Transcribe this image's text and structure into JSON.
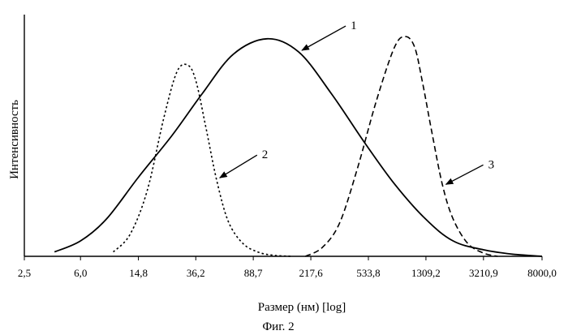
{
  "chart_data": {
    "type": "line",
    "title": "",
    "caption": "Фиг. 2",
    "xlabel": "Размер (нм)  [log]",
    "ylabel": "Интенсивность",
    "xscale": "log",
    "xlim": [
      2.5,
      8000.0
    ],
    "ylim": [
      0,
      1.1
    ],
    "x_ticks": [
      "2,5",
      "6,0",
      "14,8",
      "36,2",
      "88,7",
      "217,6",
      "533,8",
      "1309,2",
      "3210,9",
      "8000,0"
    ],
    "x_tick_values": [
      2.5,
      6.0,
      14.8,
      36.2,
      88.7,
      217.6,
      533.8,
      1309.2,
      3210.9,
      8000.0
    ],
    "series": [
      {
        "name": "1",
        "style": "solid",
        "x": [
          4.0,
          6.0,
          9.0,
          14.8,
          25.0,
          40.0,
          65.0,
          110.0,
          180.0,
          300.0,
          500.0,
          800.0,
          1300.0,
          2000.0,
          3200.0,
          5000.0,
          8000.0
        ],
        "y": [
          0.02,
          0.07,
          0.17,
          0.36,
          0.55,
          0.74,
          0.92,
          0.99,
          0.93,
          0.74,
          0.52,
          0.33,
          0.17,
          0.07,
          0.03,
          0.01,
          0.0
        ]
      },
      {
        "name": "2",
        "style": "dotted",
        "x": [
          10.0,
          13.0,
          17.0,
          22.0,
          27.0,
          32.0,
          36.2,
          42.0,
          50.0,
          60.0,
          75.0,
          95.0,
          120.0,
          160.0
        ],
        "y": [
          0.02,
          0.1,
          0.3,
          0.63,
          0.84,
          0.87,
          0.8,
          0.6,
          0.35,
          0.16,
          0.06,
          0.02,
          0.005,
          0.0
        ]
      },
      {
        "name": "3",
        "style": "dashed",
        "x": [
          200.0,
          260.0,
          340.0,
          450.0,
          600.0,
          800.0,
          950.0,
          1100.0,
          1250.0,
          1450.0,
          1700.0,
          2000.0,
          2500.0,
          3200.0,
          4000.0
        ],
        "y": [
          0.0,
          0.04,
          0.15,
          0.4,
          0.7,
          0.95,
          1.0,
          0.95,
          0.78,
          0.55,
          0.32,
          0.17,
          0.06,
          0.015,
          0.0
        ]
      }
    ]
  }
}
